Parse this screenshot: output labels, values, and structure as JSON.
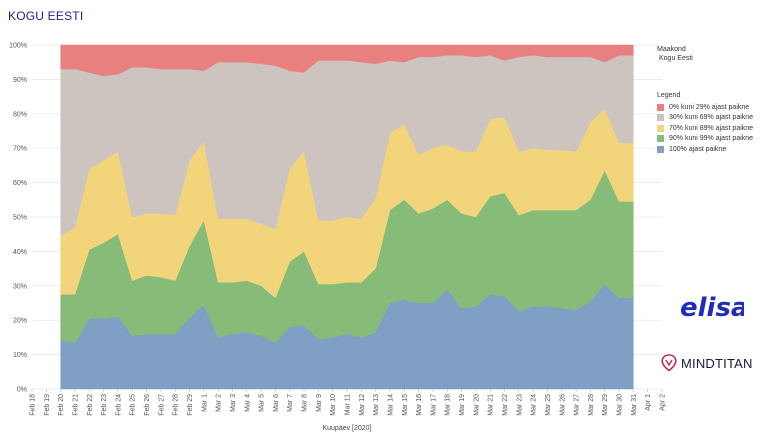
{
  "page": {
    "title": "KOGU EESTI"
  },
  "side_panel": {
    "heading": "Maakond",
    "value": "Kogu Eesti"
  },
  "legend": {
    "title": "Legend",
    "items": [
      {
        "label": "0% kuni 29% ajast paikne",
        "color": "#e88080"
      },
      {
        "label": "30% kuni 69% ajast paikne",
        "color": "#cdc3bf"
      },
      {
        "label": "70% kuni 89% ajast paikne",
        "color": "#f2d57a"
      },
      {
        "label": "90% kuni 99% ajast paikne",
        "color": "#86bb78"
      },
      {
        "label": "100% ajast paikne",
        "color": "#7f9fc4"
      }
    ]
  },
  "brands": {
    "elisa": "elisa",
    "mindtitan": "MINDTITAN"
  },
  "chart_data": {
    "type": "area",
    "stacked": true,
    "xlabel": "Kuupäev [2020]",
    "ylabel": "",
    "ylim": [
      0,
      100
    ],
    "y_ticks": [
      "0%",
      "10%",
      "20%",
      "30%",
      "40%",
      "50%",
      "60%",
      "70%",
      "80%",
      "90%",
      "100%"
    ],
    "x_ticks": [
      "Feb 18",
      "Feb 19",
      "Feb 20",
      "Feb 21",
      "Feb 22",
      "Feb 23",
      "Feb 24",
      "Feb 25",
      "Feb 26",
      "Feb 27",
      "Feb 28",
      "Feb 29",
      "Mar 1",
      "Mar 2",
      "Mar 3",
      "Mar 4",
      "Mar 5",
      "Mar 6",
      "Mar 7",
      "Mar 8",
      "Mar 9",
      "Mar 10",
      "Mar 11",
      "Mar 12",
      "Mar 13",
      "Mar 14",
      "Mar 15",
      "Mar 16",
      "Mar 17",
      "Mar 18",
      "Mar 19",
      "Mar 20",
      "Mar 21",
      "Mar 22",
      "Mar 23",
      "Mar 24",
      "Mar 25",
      "Mar 26",
      "Mar 27",
      "Mar 28",
      "Mar 29",
      "Mar 30",
      "Mar 31",
      "Apr 1",
      "Apr 2"
    ],
    "x_data_start_index": 2,
    "x": [
      "Feb 20",
      "Feb 21",
      "Feb 22",
      "Feb 23",
      "Feb 24",
      "Feb 25",
      "Feb 26",
      "Feb 27",
      "Feb 28",
      "Feb 29",
      "Mar 1",
      "Mar 2",
      "Mar 3",
      "Mar 4",
      "Mar 5",
      "Mar 6",
      "Mar 7",
      "Mar 8",
      "Mar 9",
      "Mar 10",
      "Mar 11",
      "Mar 12",
      "Mar 13",
      "Mar 14",
      "Mar 15",
      "Mar 16",
      "Mar 17",
      "Mar 18",
      "Mar 19",
      "Mar 20",
      "Mar 21",
      "Mar 22",
      "Mar 23",
      "Mar 24",
      "Mar 25",
      "Mar 26",
      "Mar 27",
      "Mar 28",
      "Mar 29",
      "Mar 30",
      "Mar 31"
    ],
    "grid": true,
    "series": [
      {
        "name": "100% ajast paikne",
        "color": "#7f9fc4",
        "values": [
          14,
          13.5,
          20.5,
          20.5,
          21,
          15.5,
          16,
          16,
          16,
          20.5,
          24.5,
          15,
          16,
          16.5,
          15.5,
          13.5,
          18,
          18.5,
          14.5,
          15,
          16,
          15,
          16.5,
          25,
          26,
          25,
          25,
          29,
          23.5,
          24,
          27.5,
          27,
          22.5,
          24,
          24,
          23.5,
          23,
          25.5,
          30.5,
          26.5,
          26.5
        ]
      },
      {
        "name": "90% kuni 99% ajast paikne",
        "color": "#86bb78",
        "values": [
          13.5,
          14,
          20,
          22,
          24,
          16,
          17,
          16.5,
          15.5,
          21,
          24.5,
          16,
          15,
          15,
          14.5,
          13,
          19,
          21.5,
          16,
          15.5,
          15,
          16,
          18.5,
          27,
          29,
          26,
          27.5,
          26,
          27.5,
          26,
          28.5,
          30,
          28,
          28,
          28,
          28.5,
          29,
          29.5,
          33,
          28,
          28
        ]
      },
      {
        "name": "70% kuni 89% ajast paikne",
        "color": "#f2d57a",
        "values": [
          17,
          19.5,
          23.5,
          24,
          24,
          18.5,
          18,
          18.5,
          19,
          25,
          23,
          18.5,
          18.5,
          18,
          18,
          20,
          27,
          29,
          18.5,
          18.5,
          19,
          18.5,
          20.5,
          22.5,
          22,
          17,
          17.5,
          16,
          18,
          19,
          22.5,
          22,
          18.5,
          18,
          17.5,
          17.5,
          17,
          22.5,
          18,
          17,
          17
        ]
      },
      {
        "name": "30% kuni 69% ajast paikne",
        "color": "#cdc3bf",
        "values": [
          48.5,
          46,
          28,
          24.5,
          22.5,
          43.5,
          42.5,
          42,
          42.5,
          26.5,
          20.5,
          45.5,
          45.5,
          45.5,
          46.5,
          47.5,
          28.5,
          23,
          46.5,
          46.5,
          45.5,
          45.5,
          39,
          21,
          18,
          28.5,
          26.5,
          26,
          28,
          27.5,
          18.5,
          16.5,
          27.5,
          27,
          27,
          27,
          27.5,
          19,
          13.5,
          25.5,
          25.5
        ]
      },
      {
        "name": "0% kuni 29% ajast paikne",
        "color": "#e88080",
        "values": [
          7,
          7,
          8,
          9,
          8.5,
          6.5,
          6.5,
          7,
          7,
          7,
          7.5,
          5,
          5,
          5,
          5.5,
          6,
          7.5,
          8,
          4.5,
          4.5,
          4.5,
          5,
          5.5,
          4.5,
          5,
          3.5,
          3.5,
          3,
          3,
          3.5,
          3,
          4.5,
          3.5,
          3,
          3.5,
          3.5,
          3.5,
          3.5,
          5,
          3,
          3
        ]
      }
    ]
  }
}
